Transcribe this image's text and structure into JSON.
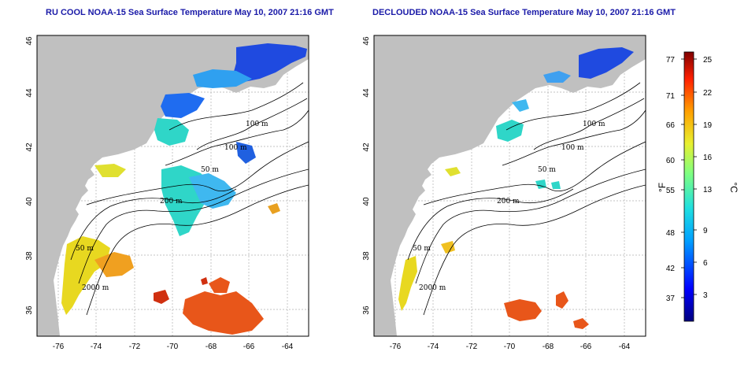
{
  "panels": [
    {
      "title": "RU COOL NOAA-15 Sea Surface Temperature May 10, 2007 21:16 GMT",
      "isobaths": [
        "100 m",
        "100 m",
        "50 m",
        "200 m",
        "50 m",
        "2000 m"
      ]
    },
    {
      "title": "DECLOUDED NOAA-15 Sea Surface Temperature May 10, 2007 21:16 GMT",
      "isobaths": [
        "100 m",
        "100 m",
        "50 m",
        "200 m",
        "50 m",
        "2000 m"
      ]
    }
  ],
  "axes": {
    "lat_ticks": [
      "46",
      "44",
      "42",
      "40",
      "38",
      "36"
    ],
    "lon_ticks": [
      "-76",
      "-74",
      "-72",
      "-70",
      "-68",
      "-66",
      "-64"
    ]
  },
  "colorbar": {
    "fahrenheit_label": "°F",
    "celsius_label": "°C",
    "fahrenheit_ticks": [
      "77",
      "71",
      "66",
      "60",
      "55",
      "48",
      "42",
      "37"
    ],
    "celsius_ticks": [
      "25",
      "22",
      "19",
      "16",
      "13",
      "9",
      "6",
      "3"
    ]
  },
  "colors": {
    "land": "#c0c0c0",
    "title": "#1a1aa8",
    "warm": "#e8561a",
    "cool": "#1f4ae0",
    "mid": "#2fd6c8"
  }
}
